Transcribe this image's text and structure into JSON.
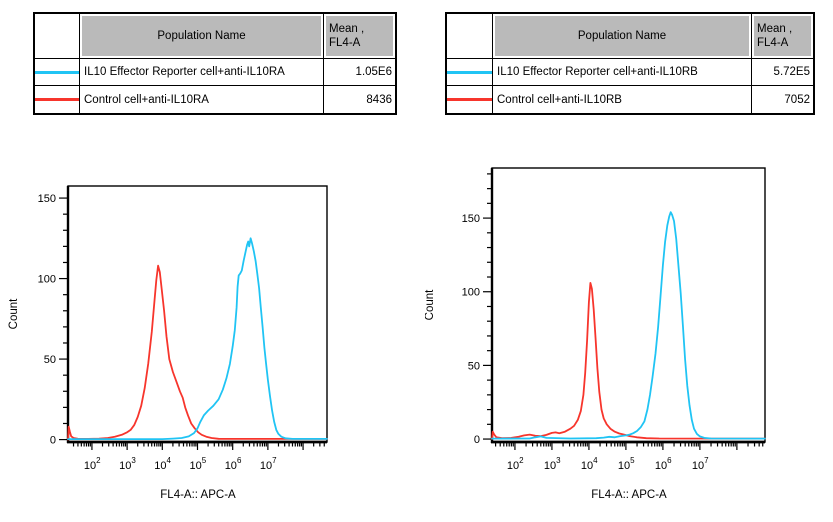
{
  "colors": {
    "reporter_line": "#20C4F4",
    "control_line": "#F7352C",
    "table_header_bg": "#BABABA",
    "table_border": "#000000",
    "axis": "#000000",
    "background": "#FFFFFF"
  },
  "tables": [
    {
      "header": {
        "population": "Population Name",
        "mean_line1": "Mean ,",
        "mean_line2": "FL4-A"
      },
      "rows": [
        {
          "swatch_color": "#20C4F4",
          "population": "IL10 Effector Reporter cell+anti-IL10RA",
          "mean": "1.05E6"
        },
        {
          "swatch_color": "#F7352C",
          "population": "Control cell+anti-IL10RA",
          "mean": "8436"
        }
      ]
    },
    {
      "header": {
        "population": "Population Name",
        "mean_line1": "Mean ,",
        "mean_line2": "FL4-A"
      },
      "rows": [
        {
          "swatch_color": "#20C4F4",
          "population": "IL10 Effector Reporter cell+anti-IL10RB",
          "mean": "5.72E5"
        },
        {
          "swatch_color": "#F7352C",
          "population": "Control cell+anti-IL10RB",
          "mean": "7052"
        }
      ]
    }
  ],
  "chart_data": [
    {
      "type": "line",
      "subtype": "flow-cytometry-histogram-overlay",
      "title": "",
      "xlabel": "FL4-A:: APC-A",
      "ylabel": "Count",
      "x_scale": "log10",
      "x_tick_exponents_labeled": [
        2,
        3,
        4,
        5,
        6,
        7
      ],
      "x_range_log10": [
        1.32,
        8.68
      ],
      "y_ticks": [
        0,
        50,
        100,
        150
      ],
      "y_minor_step": 10,
      "y_range": [
        -1.5,
        157.5
      ],
      "grid": false,
      "legend": "table-above",
      "series": [
        {
          "name": "Control cell+anti-IL10RA",
          "color": "#F7352C",
          "points_log10x_count": [
            [
              1.32,
              0
            ],
            [
              1.34,
              8
            ],
            [
              1.37,
              5
            ],
            [
              1.41,
              2
            ],
            [
              1.48,
              1
            ],
            [
              1.6,
              0.5
            ],
            [
              1.9,
              0.4
            ],
            [
              2.2,
              0.6
            ],
            [
              2.45,
              1
            ],
            [
              2.65,
              1.8
            ],
            [
              2.85,
              3
            ],
            [
              3.0,
              4.5
            ],
            [
              3.1,
              6
            ],
            [
              3.2,
              9
            ],
            [
              3.3,
              14
            ],
            [
              3.4,
              21
            ],
            [
              3.5,
              32
            ],
            [
              3.6,
              47
            ],
            [
              3.7,
              67
            ],
            [
              3.78,
              87
            ],
            [
              3.83,
              99
            ],
            [
              3.88,
              108
            ],
            [
              3.93,
              104
            ],
            [
              3.98,
              94
            ],
            [
              4.05,
              80
            ],
            [
              4.12,
              64
            ],
            [
              4.2,
              50
            ],
            [
              4.3,
              42
            ],
            [
              4.4,
              36
            ],
            [
              4.5,
              30
            ],
            [
              4.58,
              26
            ],
            [
              4.65,
              20
            ],
            [
              4.73,
              15
            ],
            [
              4.82,
              10
            ],
            [
              4.92,
              7
            ],
            [
              5.02,
              4.5
            ],
            [
              5.12,
              3
            ],
            [
              5.25,
              1.8
            ],
            [
              5.4,
              1
            ],
            [
              5.6,
              0.5
            ],
            [
              6.0,
              0.4
            ],
            [
              8.68,
              0.4
            ]
          ]
        },
        {
          "name": "IL10 Effector Reporter cell+anti-IL10RA",
          "color": "#20C4F4",
          "points_log10x_count": [
            [
              1.32,
              0.3
            ],
            [
              4.0,
              0.3
            ],
            [
              4.3,
              0.6
            ],
            [
              4.55,
              1
            ],
            [
              4.75,
              2
            ],
            [
              4.9,
              4
            ],
            [
              5.0,
              7
            ],
            [
              5.08,
              11
            ],
            [
              5.18,
              15
            ],
            [
              5.3,
              18
            ],
            [
              5.45,
              21
            ],
            [
              5.6,
              25
            ],
            [
              5.72,
              31
            ],
            [
              5.82,
              38
            ],
            [
              5.92,
              47
            ],
            [
              6.0,
              58
            ],
            [
              6.06,
              68
            ],
            [
              6.11,
              82
            ],
            [
              6.14,
              95
            ],
            [
              6.17,
              102
            ],
            [
              6.21,
              103
            ],
            [
              6.26,
              105
            ],
            [
              6.31,
              111
            ],
            [
              6.37,
              117
            ],
            [
              6.41,
              121
            ],
            [
              6.44,
              123
            ],
            [
              6.47,
              120
            ],
            [
              6.51,
              125
            ],
            [
              6.55,
              122
            ],
            [
              6.6,
              117
            ],
            [
              6.65,
              111
            ],
            [
              6.7,
              103
            ],
            [
              6.75,
              94
            ],
            [
              6.8,
              82
            ],
            [
              6.85,
              70
            ],
            [
              6.9,
              57
            ],
            [
              6.95,
              47
            ],
            [
              7.0,
              37
            ],
            [
              7.06,
              27
            ],
            [
              7.12,
              18
            ],
            [
              7.18,
              11
            ],
            [
              7.24,
              6
            ],
            [
              7.3,
              3.5
            ],
            [
              7.38,
              1.8
            ],
            [
              7.5,
              0.8
            ],
            [
              7.7,
              0.4
            ],
            [
              8.68,
              0.4
            ]
          ]
        }
      ]
    },
    {
      "type": "line",
      "subtype": "flow-cytometry-histogram-overlay",
      "title": "",
      "xlabel": "FL4-A:: APC-A",
      "ylabel": "Count",
      "x_scale": "log10",
      "x_tick_exponents_labeled": [
        2,
        3,
        4,
        5,
        6,
        7
      ],
      "x_range_log10": [
        1.38,
        8.76
      ],
      "y_ticks": [
        0,
        50,
        100,
        150
      ],
      "y_minor_step": 10,
      "y_range": [
        -2,
        184
      ],
      "grid": false,
      "legend": "table-above",
      "series": [
        {
          "name": "Control cell+anti-IL10RB",
          "color": "#F7352C",
          "points_log10x_count": [
            [
              1.38,
              0
            ],
            [
              1.4,
              5
            ],
            [
              1.44,
              3
            ],
            [
              1.5,
              1.2
            ],
            [
              1.65,
              0.6
            ],
            [
              1.9,
              0.8
            ],
            [
              2.1,
              1.5
            ],
            [
              2.25,
              2.5
            ],
            [
              2.4,
              3
            ],
            [
              2.55,
              2.2
            ],
            [
              2.7,
              2
            ],
            [
              2.85,
              2.8
            ],
            [
              3.0,
              4.2
            ],
            [
              3.1,
              4.5
            ],
            [
              3.2,
              4
            ],
            [
              3.35,
              5
            ],
            [
              3.5,
              7
            ],
            [
              3.6,
              9
            ],
            [
              3.7,
              13
            ],
            [
              3.78,
              19
            ],
            [
              3.85,
              30
            ],
            [
              3.9,
              45
            ],
            [
              3.95,
              67
            ],
            [
              4.0,
              93
            ],
            [
              4.04,
              106
            ],
            [
              4.08,
              102
            ],
            [
              4.13,
              88
            ],
            [
              4.18,
              68
            ],
            [
              4.23,
              48
            ],
            [
              4.28,
              32
            ],
            [
              4.34,
              20
            ],
            [
              4.4,
              14
            ],
            [
              4.48,
              10
            ],
            [
              4.58,
              7
            ],
            [
              4.7,
              5
            ],
            [
              4.82,
              3.8
            ],
            [
              4.95,
              3
            ],
            [
              5.1,
              2
            ],
            [
              5.3,
              1.2
            ],
            [
              5.55,
              0.6
            ],
            [
              5.9,
              0.4
            ],
            [
              8.76,
              0.3
            ]
          ]
        },
        {
          "name": "IL10 Effector Reporter cell+anti-IL10RB",
          "color": "#20C4F4",
          "points_log10x_count": [
            [
              1.38,
              0.3
            ],
            [
              2.4,
              0.4
            ],
            [
              2.55,
              1.2
            ],
            [
              2.7,
              1.8
            ],
            [
              2.85,
              0.8
            ],
            [
              3.5,
              0.4
            ],
            [
              4.2,
              0.6
            ],
            [
              4.4,
              1
            ],
            [
              4.55,
              1.5
            ],
            [
              4.7,
              1.2
            ],
            [
              4.85,
              2
            ],
            [
              5.0,
              2.5
            ],
            [
              5.1,
              3
            ],
            [
              5.2,
              4
            ],
            [
              5.3,
              5.5
            ],
            [
              5.4,
              8
            ],
            [
              5.5,
              12
            ],
            [
              5.58,
              20
            ],
            [
              5.65,
              30
            ],
            [
              5.72,
              42
            ],
            [
              5.8,
              58
            ],
            [
              5.87,
              76
            ],
            [
              5.93,
              95
            ],
            [
              6.0,
              118
            ],
            [
              6.06,
              134
            ],
            [
              6.12,
              145
            ],
            [
              6.17,
              151
            ],
            [
              6.21,
              154
            ],
            [
              6.25,
              152
            ],
            [
              6.3,
              148
            ],
            [
              6.36,
              136
            ],
            [
              6.42,
              118
            ],
            [
              6.48,
              99
            ],
            [
              6.54,
              77
            ],
            [
              6.6,
              54
            ],
            [
              6.66,
              36
            ],
            [
              6.72,
              23
            ],
            [
              6.78,
              13
            ],
            [
              6.84,
              7
            ],
            [
              6.92,
              3.5
            ],
            [
              7.0,
              1.8
            ],
            [
              7.12,
              0.8
            ],
            [
              7.3,
              0.4
            ],
            [
              8.76,
              0.3
            ]
          ]
        }
      ]
    }
  ]
}
